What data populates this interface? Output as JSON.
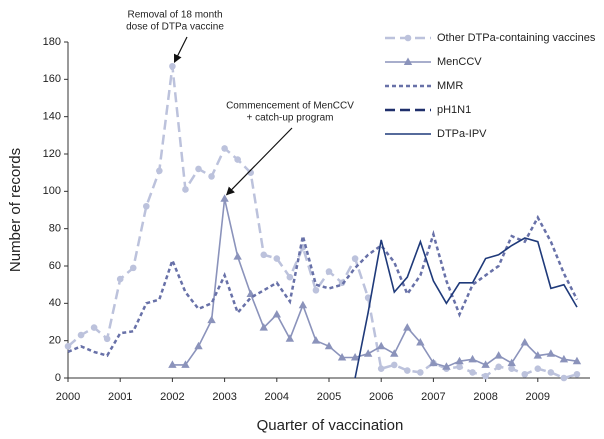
{
  "chart_data": {
    "type": "line",
    "xlabel": "Quarter of vaccination",
    "ylabel": "Number of records",
    "x": [
      2000,
      2000.25,
      2000.5,
      2000.75,
      2001,
      2001.25,
      2001.5,
      2001.75,
      2002,
      2002.25,
      2002.5,
      2002.75,
      2003,
      2003.25,
      2003.5,
      2003.75,
      2004,
      2004.25,
      2004.5,
      2004.75,
      2005,
      2005.25,
      2005.5,
      2005.75,
      2006,
      2006.25,
      2006.5,
      2006.75,
      2007,
      2007.25,
      2007.5,
      2007.75,
      2008,
      2008.25,
      2008.5,
      2008.75,
      2009,
      2009.25,
      2009.5,
      2009.75
    ],
    "xlim": [
      2000,
      2010
    ],
    "xticks": [
      2000,
      2001,
      2002,
      2003,
      2004,
      2005,
      2006,
      2007,
      2008,
      2009
    ],
    "ylim": [
      0,
      180
    ],
    "yticks": [
      0,
      20,
      40,
      60,
      80,
      100,
      120,
      140,
      160,
      180
    ],
    "legend": "upper right",
    "series": [
      {
        "name": "Other DTPa-containing vaccines",
        "color": "#bcc2dc",
        "style": "dashed",
        "marker": "circle",
        "values": [
          17,
          23,
          27,
          21,
          53,
          59,
          92,
          111,
          167,
          101,
          112,
          108,
          123,
          117,
          110,
          66,
          64,
          54,
          70,
          47,
          57,
          51,
          64,
          43,
          5,
          7,
          4,
          3,
          8,
          5,
          6,
          3,
          1,
          6,
          5,
          2,
          5,
          3,
          0,
          2
        ]
      },
      {
        "name": "MenCCV",
        "color": "#8b93bb",
        "style": "solid",
        "marker": "triangle",
        "values": [
          null,
          null,
          null,
          null,
          null,
          null,
          null,
          null,
          7,
          7,
          17,
          31,
          96,
          65,
          45,
          27,
          34,
          21,
          39,
          20,
          17,
          11,
          11,
          13,
          17,
          13,
          27,
          19,
          8,
          6,
          9,
          10,
          7,
          12,
          8,
          19,
          12,
          13,
          10,
          9
        ]
      },
      {
        "name": "MMR",
        "color": "#6871a8",
        "style": "dotted",
        "marker": "none",
        "values": [
          14,
          17,
          14,
          12,
          24,
          25,
          40,
          42,
          63,
          46,
          37,
          40,
          55,
          35,
          43,
          47,
          51,
          41,
          76,
          50,
          48,
          50,
          59,
          66,
          71,
          62,
          45,
          55,
          77,
          52,
          34,
          50,
          55,
          60,
          76,
          73,
          86,
          73,
          56,
          42
        ]
      },
      {
        "name": "pH1N1",
        "color": "#1f2f6b",
        "style": "dashed",
        "marker": "none",
        "values": [
          null,
          null,
          null,
          null,
          null,
          null,
          null,
          null,
          null,
          null,
          null,
          null,
          null,
          null,
          null,
          null,
          null,
          null,
          null,
          null,
          null,
          null,
          null,
          null,
          null,
          null,
          null,
          null,
          null,
          null,
          null,
          null,
          null,
          null,
          null,
          null,
          null,
          null,
          null,
          null
        ]
      },
      {
        "name": "DTPa-IPV",
        "color": "#1f3a7a",
        "style": "solid",
        "marker": "none",
        "values": [
          null,
          null,
          null,
          null,
          null,
          null,
          null,
          null,
          null,
          null,
          null,
          null,
          null,
          null,
          null,
          null,
          null,
          null,
          null,
          null,
          null,
          null,
          0,
          35,
          74,
          46,
          54,
          73,
          52,
          40,
          51,
          51,
          64,
          66,
          71,
          75,
          73,
          48,
          50,
          38
        ]
      }
    ],
    "annotations": [
      {
        "lines": [
          "Removal of 18 month",
          "dose of DTPa vaccine"
        ],
        "x": 2002,
        "y": 167
      },
      {
        "lines": [
          "Commencement of MenCCV",
          "+ catch-up program"
        ],
        "x": 2003,
        "y": 96
      }
    ]
  }
}
